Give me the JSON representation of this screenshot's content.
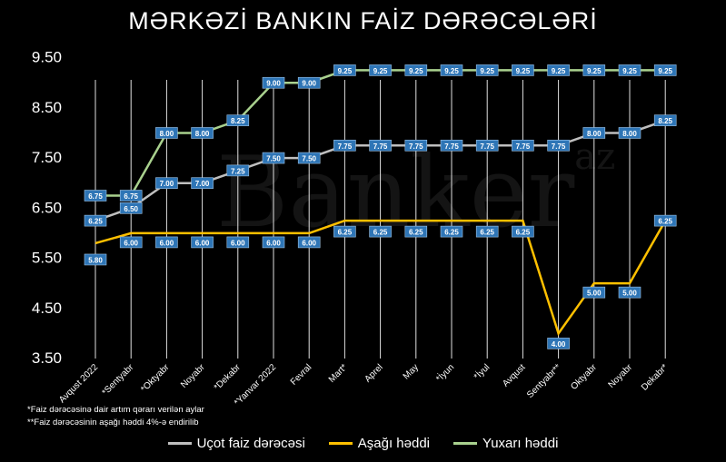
{
  "chart_data": {
    "type": "line",
    "title": "MƏRKƏZİ BANKIN FAİZ DƏRƏCƏLƏRİ",
    "categories": [
      "Avqust 2022",
      "*Sentyabr",
      "*Oktyabr",
      "Noyabr",
      "*Dekabr",
      "*Yanvar 2022",
      "Fevral",
      "Mart*",
      "Aprel",
      "May",
      "*İyun",
      "*İyul",
      "Avqust",
      "Sentyabr**",
      "Oktyabr",
      "Noyabr",
      "Dekabr*"
    ],
    "series": [
      {
        "name": "Uçot faiz dərəcəsi",
        "color": "#bfbfbf",
        "values": [
          6.25,
          6.5,
          7.0,
          7.0,
          7.25,
          7.5,
          7.5,
          7.75,
          7.75,
          7.75,
          7.75,
          7.75,
          7.75,
          7.75,
          8.0,
          8.0,
          8.25
        ]
      },
      {
        "name": "Aşağı həddi",
        "color": "#ffc000",
        "values": [
          5.8,
          6.0,
          6.0,
          6.0,
          6.0,
          6.0,
          6.0,
          6.25,
          6.25,
          6.25,
          6.25,
          6.25,
          6.25,
          4.0,
          5.0,
          5.0,
          6.25
        ]
      },
      {
        "name": "Yuxarı həddi",
        "color": "#a9d18e",
        "values": [
          6.75,
          6.75,
          8.0,
          8.0,
          8.25,
          9.0,
          9.0,
          9.25,
          9.25,
          9.25,
          9.25,
          9.25,
          9.25,
          9.25,
          9.25,
          9.25,
          9.25
        ]
      }
    ],
    "yticks": [
      "9.50",
      "8.50",
      "7.50",
      "6.50",
      "5.50",
      "4.50",
      "3.50"
    ],
    "ylim": [
      3.5,
      10.0
    ],
    "grid": "vertical",
    "legend": "bottom",
    "label_color": "#2e75b6"
  },
  "notes": [
    "*Faiz dərəcəsinə dair artım qərarı verilən aylar",
    "**Faiz dərəcəsinin aşağı həddi 4%-ə endirilib"
  ],
  "watermark": {
    "text": "Banker",
    "sup": "az"
  }
}
